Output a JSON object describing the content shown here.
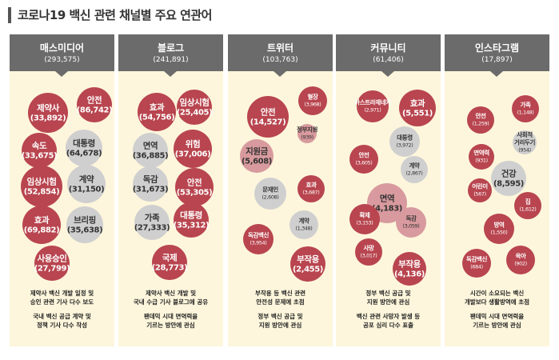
{
  "title": "코로나19 백신 관련 채널별 주요 연관어",
  "colors": {
    "red": "#b8454f",
    "gray": "#cfcfcf",
    "pink": "#d89a9e",
    "header": "#6b6b6b",
    "panel": "#fdf6dc"
  },
  "chart_data": {
    "type": "bubble",
    "channels": [
      {
        "name": "매스미디어",
        "count": "(293,575)",
        "bubbles": [
          {
            "term": "안전",
            "value": "(86,742)",
            "color": "red"
          },
          {
            "term": "제약사",
            "value": "(33,892)",
            "color": "red"
          },
          {
            "term": "속도",
            "value": "(33,675)",
            "color": "red"
          },
          {
            "term": "대통령",
            "value": "(64,678)",
            "color": "gray"
          },
          {
            "term": "임상시험",
            "value": "(52,854)",
            "color": "red"
          },
          {
            "term": "계약",
            "value": "(31,150)",
            "color": "gray"
          },
          {
            "term": "효과",
            "value": "(69,882)",
            "color": "red"
          },
          {
            "term": "브리핑",
            "value": "(35,638)",
            "color": "gray"
          },
          {
            "term": "사용승인",
            "value": "(27,799)",
            "color": "red"
          }
        ],
        "notes": [
          "제약사 백신 개발 일정 및\n승인 관련 기사 다수 보도",
          "국내 백신 공급 계약 및\n정책 기사 다수 작성"
        ]
      },
      {
        "name": "블로그",
        "count": "(241,891)",
        "bubbles": [
          {
            "term": "임상시험",
            "value": "(25,405)",
            "color": "red"
          },
          {
            "term": "효과",
            "value": "(54,756)",
            "color": "red"
          },
          {
            "term": "면역",
            "value": "(36,885)",
            "color": "gray"
          },
          {
            "term": "위험",
            "value": "(37,006)",
            "color": "red"
          },
          {
            "term": "독감",
            "value": "(31,673)",
            "color": "gray"
          },
          {
            "term": "안전",
            "value": "(53,305)",
            "color": "red"
          },
          {
            "term": "가족",
            "value": "(27,333)",
            "color": "gray"
          },
          {
            "term": "대통령",
            "value": "(35,312)",
            "color": "red"
          },
          {
            "term": "국제",
            "value": "(28,773)",
            "color": "red"
          }
        ],
        "notes": [
          "제약사 백신 개발 및\n국내 수급 기사 블로그에 공유",
          "팬데믹 시대 면역력을\n기르는 방안에 관심"
        ]
      },
      {
        "name": "트위터",
        "count": "(103,763)",
        "bubbles": [
          {
            "term": "혈장",
            "value": "(3,968)",
            "color": "red"
          },
          {
            "term": "안전",
            "value": "(14,527)",
            "color": "red"
          },
          {
            "term": "정부지원",
            "value": "(939)",
            "color": "pink"
          },
          {
            "term": "지원금",
            "value": "(5,608)",
            "color": "pink"
          },
          {
            "term": "문재인",
            "value": "(2,608)",
            "color": "gray"
          },
          {
            "term": "효과",
            "value": "(3,687)",
            "color": "red"
          },
          {
            "term": "계약",
            "value": "(1,348)",
            "color": "gray"
          },
          {
            "term": "독감백신",
            "value": "(3,954)",
            "color": "red"
          },
          {
            "term": "부작용",
            "value": "(2,455)",
            "color": "red"
          }
        ],
        "notes": [
          "부작용 등 백신 관련\n안전성 문제에 초점",
          "정부 백신 공급 및\n지원 방안에 관심"
        ]
      },
      {
        "name": "커뮤니티",
        "count": "(61,406)",
        "bubbles": [
          {
            "term": "아스트라제네카",
            "value": "(2,971)",
            "color": "red"
          },
          {
            "term": "효과",
            "value": "(5,551)",
            "color": "red"
          },
          {
            "term": "대통령",
            "value": "(3,972)",
            "color": "gray"
          },
          {
            "term": "안전",
            "value": "(3,605)",
            "color": "red"
          },
          {
            "term": "계약",
            "value": "(2,867)",
            "color": "gray"
          },
          {
            "term": "면역",
            "value": "(4,183)",
            "color": "pink"
          },
          {
            "term": "확제",
            "value": "(3,153)",
            "color": "red"
          },
          {
            "term": "독감",
            "value": "(3,059)",
            "color": "pink"
          },
          {
            "term": "사망",
            "value": "(3,017)",
            "color": "red"
          },
          {
            "term": "부작용",
            "value": "(4,136)",
            "color": "red"
          }
        ],
        "notes": [
          "정부 백신 공급 및\n지원 방안에 관심",
          "백신 관련 사망자 발생 등\n공포 심리 다수 표출"
        ]
      },
      {
        "name": "인스타그램",
        "count": "(17,897)",
        "bubbles": [
          {
            "term": "가족",
            "value": "(1,148)",
            "color": "red"
          },
          {
            "term": "안전",
            "value": "(1,259)",
            "color": "red"
          },
          {
            "term": "사회적\n거리두기",
            "value": "(954)",
            "color": "gray"
          },
          {
            "term": "면역력",
            "value": "(931)",
            "color": "red"
          },
          {
            "term": "건강",
            "value": "(8,595)",
            "color": "gray"
          },
          {
            "term": "어린이",
            "value": "(567)",
            "color": "red"
          },
          {
            "term": "집",
            "value": "(1,612)",
            "color": "red"
          },
          {
            "term": "방역",
            "value": "(1,550)",
            "color": "red"
          },
          {
            "term": "독감백신",
            "value": "(684)",
            "color": "red"
          },
          {
            "term": "육아",
            "value": "(902)",
            "color": "red"
          }
        ],
        "notes": [
          "시간이 소요되는 백신\n개발보다 생활방역에 초점",
          "팬데믹 시대 면역력을\n기르는 방안에 관심"
        ]
      }
    ]
  }
}
